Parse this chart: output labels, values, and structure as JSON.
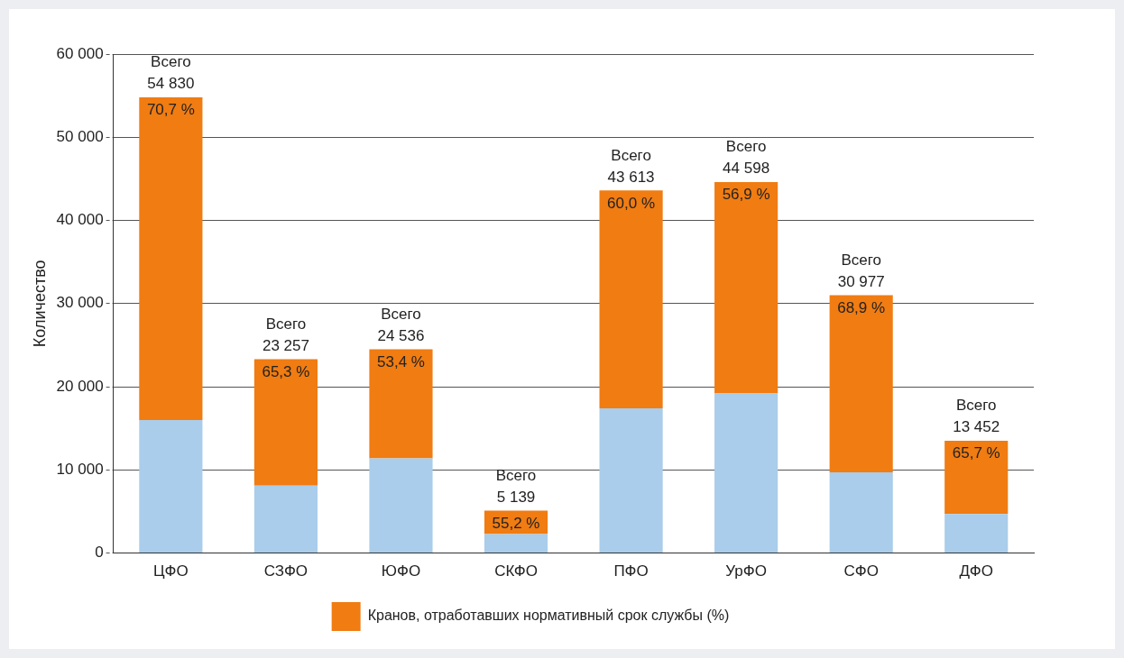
{
  "chart_data": {
    "type": "bar",
    "stacked": true,
    "ylabel": "Количество",
    "categories": [
      "ЦФО",
      "СЗФО",
      "ЮФО",
      "СКФО",
      "ПФО",
      "УрФО",
      "СФО",
      "ДФО"
    ],
    "series": [
      {
        "color": "#a9cdea",
        "values": [
          16000,
          8100,
          11400,
          2300,
          17400,
          19200,
          9700,
          4700
        ]
      },
      {
        "name": "Кранов, отработавших нормативный срок службы (%)",
        "color": "#f07c12",
        "values": [
          38800,
          15200,
          13100,
          2800,
          26200,
          25400,
          21300,
          8800
        ]
      }
    ],
    "totals": [
      "Всего 54 830",
      "Всего 23 257",
      "Всего 24 536",
      "Всего 5 139",
      "Всего 43 613",
      "Всего 44 598",
      "Всего 30 977",
      "Всего 13 452"
    ],
    "annotations": [
      {
        "text": "70,7 %",
        "x": "ЦФО",
        "y": 54800
      },
      {
        "text": "65,3 %",
        "x": "СЗФО",
        "y": 23300
      },
      {
        "text": "53,4 %",
        "x": "ЮФО",
        "y": 24500
      },
      {
        "text": "55,2 %",
        "x": "СКФО",
        "y": 5100
      },
      {
        "text": "60,0 %",
        "x": "ПФО",
        "y": 43600
      },
      {
        "text": "56,9 %",
        "x": "УрФО",
        "y": 44600
      },
      {
        "text": "68,9 %",
        "x": "СФО",
        "y": 31000
      },
      {
        "text": "65,7 %",
        "x": "ДФО",
        "y": 13500
      }
    ],
    "ylim": [
      0,
      60000
    ],
    "yticks": [
      {
        "value": 0,
        "label": "0"
      },
      {
        "value": 10000,
        "label": "10 000"
      },
      {
        "value": 20000,
        "label": "20 000"
      },
      {
        "value": 30000,
        "label": "30 000"
      },
      {
        "value": 40000,
        "label": "40 000"
      },
      {
        "value": 50000,
        "label": "50 000"
      },
      {
        "value": 60000,
        "label": "60 000"
      }
    ],
    "grid": "y",
    "legend": "bottom"
  }
}
